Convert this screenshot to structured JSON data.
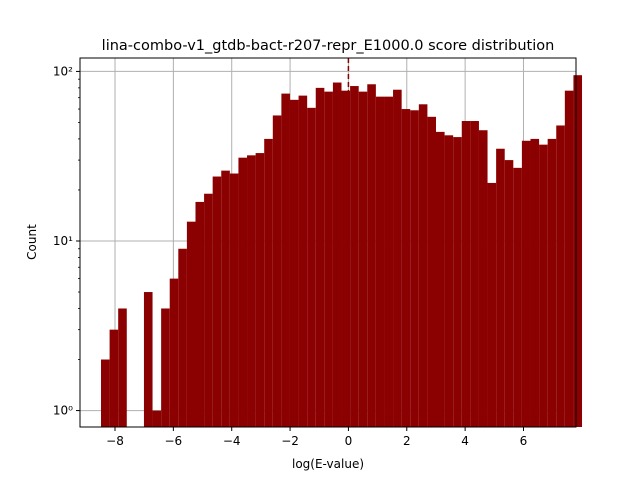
{
  "chart_data": {
    "type": "bar",
    "title": "lina-combo-v1_gtdb-bact-r207-repr_E1000.0 score distribution",
    "xlabel": "log(E-value)",
    "ylabel": "Count",
    "yscale": "log",
    "xlim": [
      -9.2,
      7.8
    ],
    "ylim": [
      0.8,
      120
    ],
    "x_ticks": [
      -8,
      -6,
      -4,
      -2,
      0,
      2,
      4,
      6
    ],
    "x_tick_labels": [
      "−8",
      "−6",
      "−4",
      "−2",
      "0",
      "2",
      "4",
      "6"
    ],
    "y_ticks": [
      1,
      10,
      100
    ],
    "y_tick_labels": [
      "10⁰",
      "10¹",
      "10²"
    ],
    "grid": true,
    "bar_color": "#8b0000",
    "reference_line": {
      "x": 0,
      "color": "#8b0000",
      "style": "dashed"
    },
    "bins": {
      "start": -8.48,
      "width": 0.2944,
      "counts": [
        2,
        3,
        4,
        0,
        0,
        5,
        1,
        4,
        6,
        9,
        13,
        17,
        19,
        24,
        26,
        25,
        31,
        32,
        33,
        40,
        55,
        74,
        68,
        72,
        61,
        80,
        76,
        86,
        77,
        82,
        76,
        84,
        71,
        71,
        78,
        60,
        59,
        64,
        54,
        44,
        42,
        41,
        51,
        51,
        45,
        22,
        35,
        30,
        27,
        39,
        40,
        37,
        40,
        48,
        77,
        95
      ]
    }
  }
}
